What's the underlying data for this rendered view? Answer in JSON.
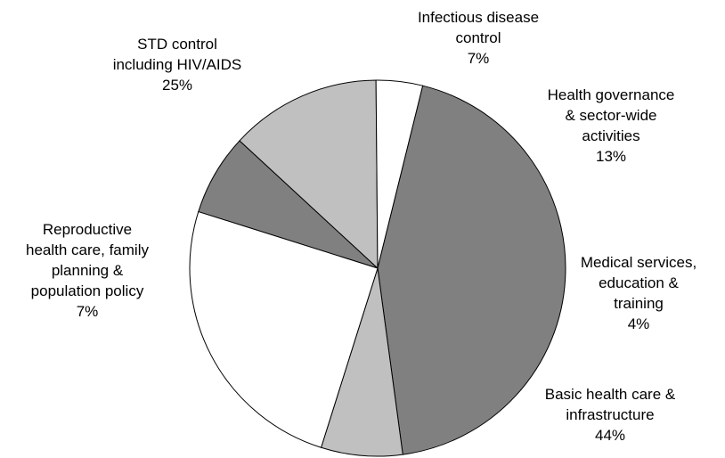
{
  "chart_data": {
    "type": "pie",
    "title": "",
    "slices": [
      {
        "label": [
          "Infectious disease",
          "control"
        ],
        "value": 7,
        "value_text": "7%",
        "color": "#808080"
      },
      {
        "label": [
          "Health governance",
          "& sector-wide",
          "activities"
        ],
        "value": 13,
        "value_text": "13%",
        "color": "#c0c0c0"
      },
      {
        "label": [
          "Medical services,",
          "education &",
          "training"
        ],
        "value": 4,
        "value_text": "4%",
        "color": "#ffffff"
      },
      {
        "label": [
          "Basic health care &",
          "infrastructure"
        ],
        "value": 44,
        "value_text": "44%",
        "color": "#808080"
      },
      {
        "label": [
          "Reproductive",
          "health care, family",
          "planning &",
          "population policy"
        ],
        "value": 7,
        "value_text": "7%",
        "color": "#c0c0c0"
      },
      {
        "label": [
          "STD control",
          "including HIV/AIDS"
        ],
        "value": 25,
        "value_text": "25%",
        "color": "#ffffff"
      }
    ]
  }
}
